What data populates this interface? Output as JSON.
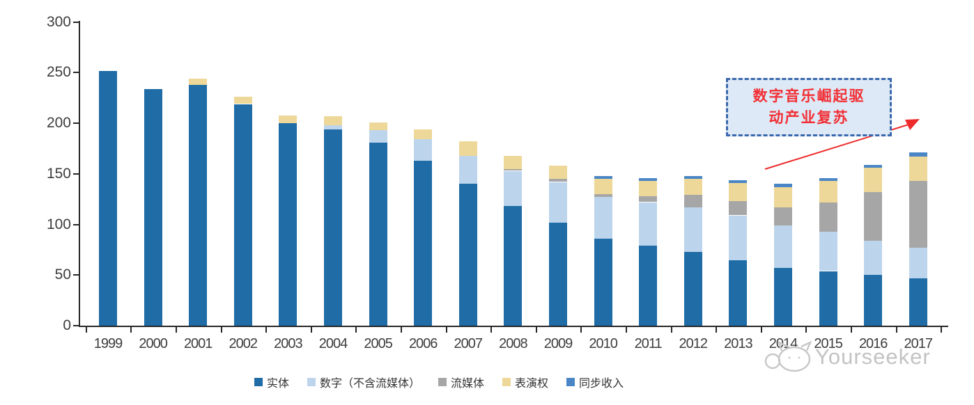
{
  "annotation": {
    "line1": "数字音乐崛起驱",
    "line2": "动产业复苏",
    "box_fill": "#dde9f6",
    "box_border": "#3a67ad",
    "text_color": "#f22f35",
    "arrow_color": "#ee2b2b"
  },
  "watermark": {
    "brand": "Yourseeker"
  },
  "chart_data": {
    "type": "bar",
    "stacked": true,
    "title": "",
    "xlabel": "",
    "ylabel": "",
    "ylim": [
      0,
      300
    ],
    "yticks": [
      0,
      50,
      100,
      150,
      200,
      250,
      300
    ],
    "grid": false,
    "legend_position": "bottom",
    "categories": [
      "1999",
      "2000",
      "2001",
      "2002",
      "2003",
      "2004",
      "2005",
      "2006",
      "2007",
      "2008",
      "2009",
      "2010",
      "2011",
      "2012",
      "2013",
      "2014",
      "2015",
      "2016",
      "2017"
    ],
    "series": [
      {
        "name": "实体",
        "color": "#1f6ca6",
        "values": [
          252,
          234,
          238,
          219,
          200,
          194,
          181,
          163,
          140,
          118,
          102,
          86,
          79,
          73,
          65,
          57,
          54,
          50,
          47
        ]
      },
      {
        "name": "数字（不含流媒体）",
        "color": "#bdd5ec",
        "values": [
          0,
          0,
          0,
          0,
          0,
          4,
          12,
          21,
          28,
          35,
          40,
          41,
          43,
          44,
          44,
          42,
          39,
          34,
          30
        ]
      },
      {
        "name": "流媒体",
        "color": "#a6a6a6",
        "values": [
          0,
          0,
          0,
          0,
          0,
          0,
          0,
          0,
          0,
          2,
          3,
          3,
          6,
          12,
          14,
          18,
          29,
          48,
          66
        ]
      },
      {
        "name": "表演权",
        "color": "#eed899",
        "values": [
          0,
          0,
          6,
          7,
          8,
          9,
          8,
          10,
          14,
          13,
          13,
          15,
          15,
          16,
          18,
          20,
          21,
          24,
          24
        ]
      },
      {
        "name": "同步收入",
        "color": "#4a86c5",
        "values": [
          0,
          0,
          0,
          0,
          0,
          0,
          0,
          0,
          0,
          0,
          0,
          3,
          3,
          3,
          3,
          3,
          3,
          3,
          4
        ]
      }
    ],
    "totals": [
      252,
      234,
      244,
      226,
      208,
      207,
      201,
      194,
      182,
      168,
      158,
      148,
      146,
      148,
      144,
      140,
      146,
      159,
      171
    ]
  }
}
